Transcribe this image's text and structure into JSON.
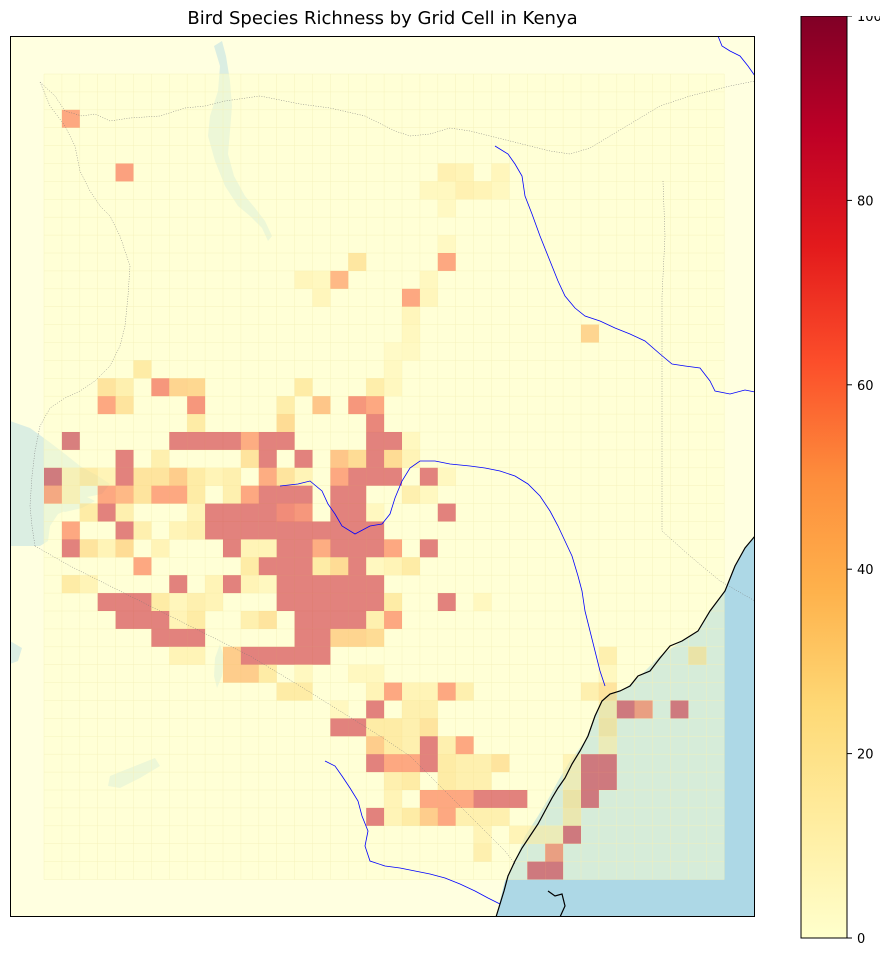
{
  "title": "Bird Species Richness by Grid Cell in Kenya",
  "colorbar": {
    "min": 0,
    "max": 100,
    "ticks": [
      "0",
      "20",
      "40",
      "60",
      "80",
      "100"
    ],
    "tick_values": [
      0,
      20,
      40,
      60,
      80,
      100
    ],
    "colormap": "YlOrRd",
    "colormap_stops": [
      "#ffffcc",
      "#ffeda0",
      "#fed976",
      "#feb24c",
      "#fd8d3c",
      "#fc4e2a",
      "#e31a1c",
      "#bd0026",
      "#800026"
    ]
  },
  "map": {
    "land_color": "#ffffe0",
    "ocean_color": "#add8e6",
    "lake_color": "#dbeee2",
    "river_color": "#0000ff",
    "coastline_color": "#000000",
    "border_style": "dotted",
    "overlay_alpha": 0.5
  },
  "chart_data": {
    "type": "heatmap",
    "title": "Bird Species Richness by Grid Cell in Kenya",
    "value_range": [
      0,
      100
    ],
    "grid": {
      "columns": 38,
      "rows": 45,
      "cells_with_richness": [
        [
          1,
          2,
          62
        ],
        [
          4,
          5,
          65
        ],
        [
          22,
          5,
          18
        ],
        [
          23,
          5,
          15
        ],
        [
          25,
          5,
          12
        ],
        [
          23,
          6,
          18
        ],
        [
          24,
          6,
          15
        ],
        [
          21,
          6,
          10
        ],
        [
          22,
          6,
          10
        ],
        [
          25,
          6,
          10
        ],
        [
          22,
          7,
          8
        ],
        [
          22,
          9,
          8
        ],
        [
          17,
          10,
          28
        ],
        [
          22,
          10,
          62
        ],
        [
          14,
          11,
          12
        ],
        [
          15,
          11,
          10
        ],
        [
          16,
          11,
          55
        ],
        [
          15,
          12,
          12
        ],
        [
          21,
          12,
          12
        ],
        [
          21,
          11,
          10
        ],
        [
          20,
          12,
          62
        ],
        [
          20,
          13,
          12
        ],
        [
          20,
          14,
          10
        ],
        [
          20,
          15,
          8
        ],
        [
          19,
          15,
          6
        ],
        [
          30,
          14,
          40
        ],
        [
          19,
          16,
          8
        ],
        [
          19,
          17,
          10
        ],
        [
          5,
          16,
          25
        ],
        [
          3,
          17,
          30
        ],
        [
          4,
          17,
          20
        ],
        [
          6,
          17,
          70
        ],
        [
          7,
          17,
          40
        ],
        [
          8,
          17,
          38
        ],
        [
          14,
          17,
          25
        ],
        [
          18,
          17,
          22
        ],
        [
          3,
          18,
          62
        ],
        [
          4,
          18,
          30
        ],
        [
          8,
          18,
          70
        ],
        [
          13,
          18,
          22
        ],
        [
          15,
          18,
          50
        ],
        [
          17,
          18,
          70
        ],
        [
          18,
          18,
          62
        ],
        [
          8,
          19,
          25
        ],
        [
          13,
          19,
          35
        ],
        [
          18,
          19,
          80
        ],
        [
          1,
          20,
          90
        ],
        [
          7,
          20,
          85
        ],
        [
          8,
          20,
          85
        ],
        [
          9,
          20,
          85
        ],
        [
          10,
          20,
          85
        ],
        [
          11,
          20,
          60
        ],
        [
          12,
          20,
          85
        ],
        [
          13,
          20,
          85
        ],
        [
          18,
          20,
          85
        ],
        [
          19,
          20,
          85
        ],
        [
          20,
          20,
          10
        ],
        [
          4,
          21,
          85
        ],
        [
          6,
          21,
          20
        ],
        [
          11,
          21,
          30
        ],
        [
          12,
          21,
          85
        ],
        [
          14,
          21,
          85
        ],
        [
          16,
          21,
          50
        ],
        [
          17,
          21,
          35
        ],
        [
          18,
          21,
          85
        ],
        [
          19,
          21,
          35
        ],
        [
          20,
          21,
          15
        ],
        [
          0,
          22,
          90
        ],
        [
          1,
          22,
          15
        ],
        [
          2,
          22,
          25
        ],
        [
          3,
          22,
          15
        ],
        [
          4,
          22,
          85
        ],
        [
          5,
          22,
          30
        ],
        [
          6,
          22,
          30
        ],
        [
          7,
          22,
          45
        ],
        [
          8,
          22,
          25
        ],
        [
          9,
          22,
          15
        ],
        [
          10,
          22,
          20
        ],
        [
          12,
          22,
          60
        ],
        [
          13,
          22,
          30
        ],
        [
          14,
          22,
          15
        ],
        [
          16,
          22,
          62
        ],
        [
          17,
          22,
          85
        ],
        [
          18,
          22,
          85
        ],
        [
          19,
          22,
          85
        ],
        [
          21,
          22,
          85
        ],
        [
          22,
          22,
          10
        ],
        [
          0,
          23,
          60
        ],
        [
          1,
          23,
          15
        ],
        [
          3,
          23,
          62
        ],
        [
          4,
          23,
          55
        ],
        [
          5,
          23,
          30
        ],
        [
          6,
          23,
          62
        ],
        [
          7,
          23,
          62
        ],
        [
          8,
          23,
          25
        ],
        [
          10,
          23,
          20
        ],
        [
          11,
          23,
          62
        ],
        [
          12,
          23,
          85
        ],
        [
          13,
          23,
          85
        ],
        [
          14,
          23,
          85
        ],
        [
          16,
          23,
          85
        ],
        [
          17,
          23,
          85
        ],
        [
          20,
          23,
          20
        ],
        [
          21,
          23,
          10
        ],
        [
          2,
          24,
          25
        ],
        [
          3,
          24,
          85
        ],
        [
          4,
          24,
          20
        ],
        [
          8,
          24,
          15
        ],
        [
          9,
          24,
          85
        ],
        [
          10,
          24,
          85
        ],
        [
          11,
          24,
          85
        ],
        [
          12,
          24,
          85
        ],
        [
          13,
          24,
          75
        ],
        [
          14,
          24,
          70
        ],
        [
          16,
          24,
          85
        ],
        [
          17,
          24,
          85
        ],
        [
          18,
          24,
          10
        ],
        [
          22,
          24,
          85
        ],
        [
          1,
          25,
          62
        ],
        [
          4,
          25,
          85
        ],
        [
          5,
          25,
          20
        ],
        [
          7,
          25,
          15
        ],
        [
          8,
          25,
          20
        ],
        [
          9,
          25,
          85
        ],
        [
          10,
          25,
          85
        ],
        [
          11,
          25,
          85
        ],
        [
          12,
          25,
          85
        ],
        [
          13,
          25,
          85
        ],
        [
          14,
          25,
          85
        ],
        [
          15,
          25,
          85
        ],
        [
          16,
          25,
          85
        ],
        [
          17,
          25,
          85
        ],
        [
          18,
          25,
          85
        ],
        [
          1,
          26,
          85
        ],
        [
          2,
          26,
          30
        ],
        [
          3,
          26,
          15
        ],
        [
          4,
          26,
          35
        ],
        [
          6,
          26,
          15
        ],
        [
          10,
          26,
          85
        ],
        [
          11,
          26,
          15
        ],
        [
          12,
          26,
          15
        ],
        [
          13,
          26,
          85
        ],
        [
          14,
          26,
          85
        ],
        [
          15,
          26,
          60
        ],
        [
          16,
          26,
          85
        ],
        [
          17,
          26,
          85
        ],
        [
          18,
          26,
          85
        ],
        [
          19,
          26,
          62
        ],
        [
          21,
          26,
          85
        ],
        [
          5,
          27,
          62
        ],
        [
          11,
          27,
          25
        ],
        [
          12,
          27,
          85
        ],
        [
          13,
          27,
          85
        ],
        [
          14,
          27,
          85
        ],
        [
          15,
          27,
          25
        ],
        [
          16,
          27,
          35
        ],
        [
          17,
          27,
          85
        ],
        [
          18,
          27,
          10
        ],
        [
          19,
          27,
          15
        ],
        [
          20,
          27,
          25
        ],
        [
          1,
          28,
          25
        ],
        [
          2,
          28,
          15
        ],
        [
          7,
          28,
          85
        ],
        [
          9,
          28,
          15
        ],
        [
          10,
          28,
          85
        ],
        [
          11,
          28,
          15
        ],
        [
          12,
          28,
          10
        ],
        [
          13,
          28,
          85
        ],
        [
          14,
          28,
          85
        ],
        [
          15,
          28,
          85
        ],
        [
          16,
          28,
          85
        ],
        [
          17,
          28,
          85
        ],
        [
          18,
          28,
          85
        ],
        [
          3,
          29,
          85
        ],
        [
          4,
          29,
          85
        ],
        [
          5,
          29,
          85
        ],
        [
          6,
          29,
          25
        ],
        [
          7,
          29,
          12
        ],
        [
          8,
          29,
          20
        ],
        [
          9,
          29,
          15
        ],
        [
          13,
          29,
          85
        ],
        [
          14,
          29,
          85
        ],
        [
          15,
          29,
          85
        ],
        [
          16,
          29,
          85
        ],
        [
          17,
          29,
          85
        ],
        [
          18,
          29,
          85
        ],
        [
          19,
          29,
          25
        ],
        [
          22,
          29,
          85
        ],
        [
          24,
          29,
          10
        ],
        [
          4,
          30,
          85
        ],
        [
          5,
          30,
          85
        ],
        [
          6,
          30,
          85
        ],
        [
          7,
          30,
          15
        ],
        [
          8,
          30,
          25
        ],
        [
          11,
          30,
          20
        ],
        [
          12,
          30,
          30
        ],
        [
          14,
          30,
          85
        ],
        [
          15,
          30,
          85
        ],
        [
          16,
          30,
          85
        ],
        [
          17,
          30,
          85
        ],
        [
          18,
          30,
          20
        ],
        [
          19,
          30,
          62
        ],
        [
          6,
          31,
          85
        ],
        [
          7,
          31,
          85
        ],
        [
          8,
          31,
          85
        ],
        [
          14,
          31,
          85
        ],
        [
          15,
          31,
          85
        ],
        [
          16,
          31,
          40
        ],
        [
          17,
          31,
          40
        ],
        [
          18,
          31,
          35
        ],
        [
          7,
          32,
          15
        ],
        [
          8,
          32,
          15
        ],
        [
          10,
          32,
          45
        ],
        [
          11,
          32,
          85
        ],
        [
          12,
          32,
          85
        ],
        [
          13,
          32,
          85
        ],
        [
          14,
          32,
          85
        ],
        [
          15,
          32,
          85
        ],
        [
          31,
          32,
          20
        ],
        [
          36,
          32,
          25
        ],
        [
          10,
          33,
          45
        ],
        [
          11,
          33,
          45
        ],
        [
          12,
          33,
          25
        ],
        [
          14,
          33,
          10
        ],
        [
          17,
          33,
          10
        ],
        [
          18,
          33,
          10
        ],
        [
          31,
          33,
          10
        ],
        [
          13,
          34,
          25
        ],
        [
          14,
          34,
          25
        ],
        [
          18,
          34,
          15
        ],
        [
          19,
          34,
          62
        ],
        [
          20,
          34,
          15
        ],
        [
          21,
          34,
          15
        ],
        [
          22,
          34,
          62
        ],
        [
          23,
          34,
          20
        ],
        [
          30,
          34,
          20
        ],
        [
          31,
          34,
          30
        ],
        [
          16,
          35,
          10
        ],
        [
          18,
          35,
          85
        ],
        [
          20,
          35,
          20
        ],
        [
          21,
          35,
          20
        ],
        [
          31,
          35,
          20
        ],
        [
          32,
          35,
          85
        ],
        [
          33,
          35,
          62
        ],
        [
          35,
          35,
          85
        ],
        [
          16,
          36,
          85
        ],
        [
          17,
          36,
          85
        ],
        [
          18,
          36,
          25
        ],
        [
          19,
          36,
          25
        ],
        [
          20,
          36,
          20
        ],
        [
          21,
          36,
          30
        ],
        [
          31,
          36,
          25
        ],
        [
          18,
          37,
          45
        ],
        [
          19,
          37,
          25
        ],
        [
          20,
          37,
          20
        ],
        [
          21,
          37,
          85
        ],
        [
          22,
          37,
          20
        ],
        [
          23,
          37,
          62
        ],
        [
          31,
          37,
          15
        ],
        [
          18,
          38,
          85
        ],
        [
          19,
          38,
          62
        ],
        [
          20,
          38,
          62
        ],
        [
          21,
          38,
          85
        ],
        [
          22,
          38,
          25
        ],
        [
          23,
          38,
          20
        ],
        [
          24,
          38,
          20
        ],
        [
          25,
          38,
          30
        ],
        [
          29,
          38,
          15
        ],
        [
          30,
          38,
          85
        ],
        [
          31,
          38,
          85
        ],
        [
          19,
          39,
          20
        ],
        [
          20,
          39,
          25
        ],
        [
          22,
          39,
          25
        ],
        [
          23,
          39,
          20
        ],
        [
          24,
          39,
          20
        ],
        [
          29,
          39,
          15
        ],
        [
          30,
          39,
          85
        ],
        [
          31,
          39,
          85
        ],
        [
          19,
          40,
          15
        ],
        [
          21,
          40,
          62
        ],
        [
          22,
          40,
          62
        ],
        [
          23,
          40,
          62
        ],
        [
          24,
          40,
          85
        ],
        [
          25,
          40,
          85
        ],
        [
          26,
          40,
          85
        ],
        [
          29,
          40,
          25
        ],
        [
          30,
          40,
          85
        ],
        [
          18,
          41,
          85
        ],
        [
          19,
          41,
          15
        ],
        [
          20,
          41,
          25
        ],
        [
          21,
          41,
          45
        ],
        [
          22,
          41,
          62
        ],
        [
          23,
          41,
          20
        ],
        [
          24,
          41,
          20
        ],
        [
          25,
          41,
          20
        ],
        [
          29,
          41,
          20
        ],
        [
          24,
          42,
          15
        ],
        [
          26,
          42,
          15
        ],
        [
          27,
          42,
          15
        ],
        [
          28,
          42,
          15
        ],
        [
          29,
          42,
          85
        ],
        [
          24,
          43,
          20
        ],
        [
          28,
          43,
          62
        ],
        [
          27,
          44,
          85
        ],
        [
          28,
          44,
          85
        ]
      ]
    }
  }
}
